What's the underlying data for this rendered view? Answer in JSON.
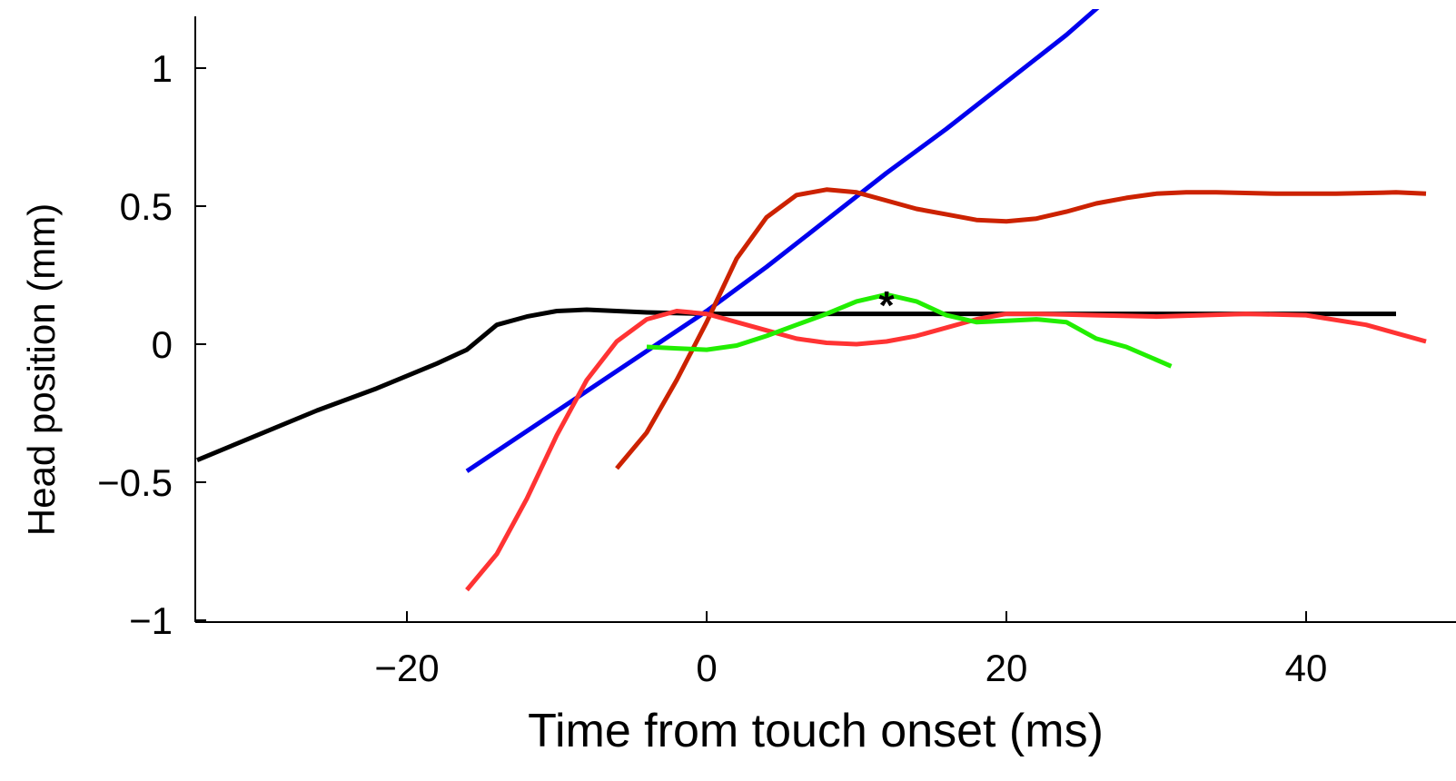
{
  "chart_data": {
    "type": "line",
    "title": "",
    "xlabel": "Time from touch onset (ms)",
    "ylabel": "Head position (mm)",
    "xlim": [
      -34,
      48
    ],
    "ylim": [
      -1.02,
      1.18
    ],
    "xticks": [
      -20,
      0,
      20,
      40
    ],
    "xtick_labels": [
      "−20",
      "0",
      "20",
      "40"
    ],
    "yticks": [
      -1,
      -0.5,
      0,
      0.5,
      1
    ],
    "ytick_labels": [
      "−1",
      "−0.5",
      "0",
      "0.5",
      "1"
    ],
    "grid": false,
    "legend": "none",
    "annotations": [
      {
        "text": "*",
        "x": 12,
        "y": 0.19
      }
    ],
    "series": [
      {
        "color": "#000000",
        "x": [
          -34,
          -30,
          -26,
          -22,
          -18,
          -16,
          -14,
          -12,
          -10,
          -8,
          -6,
          -4,
          0,
          10,
          20,
          30,
          46
        ],
        "y": [
          -0.42,
          -0.33,
          -0.24,
          -0.16,
          -0.07,
          -0.02,
          0.07,
          0.1,
          0.12,
          0.125,
          0.12,
          0.115,
          0.11,
          0.11,
          0.11,
          0.11,
          0.11
        ]
      },
      {
        "color": "#0000ee",
        "x": [
          -16,
          -8,
          0,
          4,
          8,
          12,
          16,
          20,
          24,
          28
        ],
        "y": [
          -0.46,
          -0.17,
          0.12,
          0.28,
          0.45,
          0.62,
          0.78,
          0.95,
          1.12,
          1.31
        ]
      },
      {
        "color": "#cc2200",
        "x": [
          -6,
          -4,
          -2,
          0,
          2,
          4,
          6,
          8,
          10,
          12,
          14,
          16,
          18,
          20,
          22,
          24,
          26,
          28,
          30,
          32,
          34,
          38,
          42,
          46,
          48
        ],
        "y": [
          -0.45,
          -0.32,
          -0.13,
          0.08,
          0.31,
          0.46,
          0.54,
          0.56,
          0.55,
          0.52,
          0.49,
          0.47,
          0.45,
          0.445,
          0.455,
          0.48,
          0.51,
          0.53,
          0.545,
          0.55,
          0.55,
          0.545,
          0.545,
          0.55,
          0.545
        ]
      },
      {
        "color": "#ff3333",
        "x": [
          -16,
          -14,
          -12,
          -10,
          -8,
          -6,
          -4,
          -2,
          0,
          2,
          4,
          6,
          8,
          10,
          12,
          14,
          16,
          18,
          20,
          22,
          26,
          30,
          36,
          40,
          44,
          48
        ],
        "y": [
          -0.89,
          -0.76,
          -0.56,
          -0.33,
          -0.13,
          0.01,
          0.09,
          0.12,
          0.11,
          0.08,
          0.05,
          0.02,
          0.005,
          0.0,
          0.01,
          0.03,
          0.06,
          0.09,
          0.11,
          0.11,
          0.105,
          0.1,
          0.11,
          0.105,
          0.07,
          0.01
        ]
      },
      {
        "color": "#22ee00",
        "x": [
          -4,
          -2,
          0,
          2,
          4,
          6,
          8,
          10,
          12,
          14,
          16,
          18,
          20,
          22,
          24,
          26,
          28,
          31
        ],
        "y": [
          -0.01,
          -0.015,
          -0.02,
          -0.005,
          0.03,
          0.07,
          0.11,
          0.155,
          0.18,
          0.155,
          0.105,
          0.08,
          0.085,
          0.09,
          0.08,
          0.02,
          -0.01,
          -0.08
        ]
      }
    ]
  }
}
